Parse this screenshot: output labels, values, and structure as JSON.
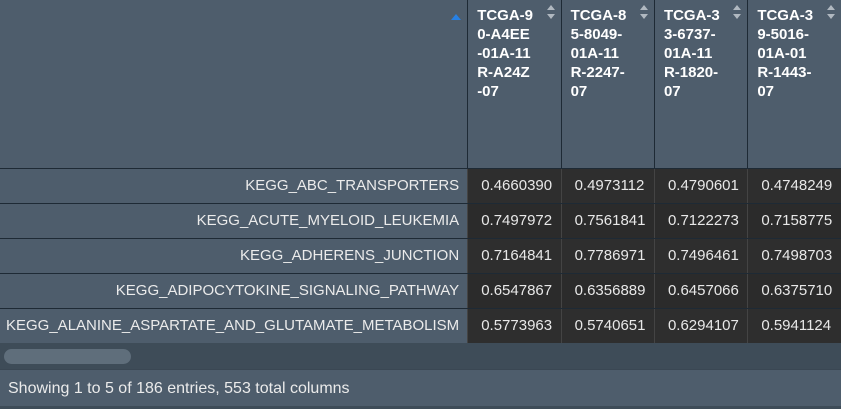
{
  "table": {
    "columns": [
      {
        "label": "",
        "sort": "asc"
      },
      {
        "label": "TCGA-90-A4EE-01A-11R-A24Z-07",
        "sort": "both"
      },
      {
        "label": "TCGA-85-8049-01A-11R-2247-07",
        "sort": "both"
      },
      {
        "label": "TCGA-33-6737-01A-11R-1820-07",
        "sort": "both"
      },
      {
        "label": "TCGA-39-5016-01A-01R-1443-07",
        "sort": "both"
      }
    ],
    "rows": [
      {
        "name": "KEGG_ABC_TRANSPORTERS",
        "values": [
          "0.4660390",
          "0.4973112",
          "0.4790601",
          "0.4748249"
        ]
      },
      {
        "name": "KEGG_ACUTE_MYELOID_LEUKEMIA",
        "values": [
          "0.7497972",
          "0.7561841",
          "0.7122273",
          "0.7158775"
        ]
      },
      {
        "name": "KEGG_ADHERENS_JUNCTION",
        "values": [
          "0.7164841",
          "0.7786971",
          "0.7496461",
          "0.7498703"
        ]
      },
      {
        "name": "KEGG_ADIPOCYTOKINE_SIGNALING_PATHWAY",
        "values": [
          "0.6547867",
          "0.6356889",
          "0.6457066",
          "0.6375710"
        ]
      },
      {
        "name": "KEGG_ALANINE_ASPARTATE_AND_GLUTAMATE_METABOLISM",
        "values": [
          "0.5773963",
          "0.5740651",
          "0.6294107",
          "0.5941124"
        ]
      }
    ]
  },
  "info": {
    "text": "Showing 1 to 5 of 186 entries, 553 total columns"
  },
  "colors": {
    "header_bg": "#4e5d6c",
    "cell_bg": "#2b2b2b",
    "sort_active": "#2780e3",
    "sort_inactive": "#b0b8c0"
  }
}
